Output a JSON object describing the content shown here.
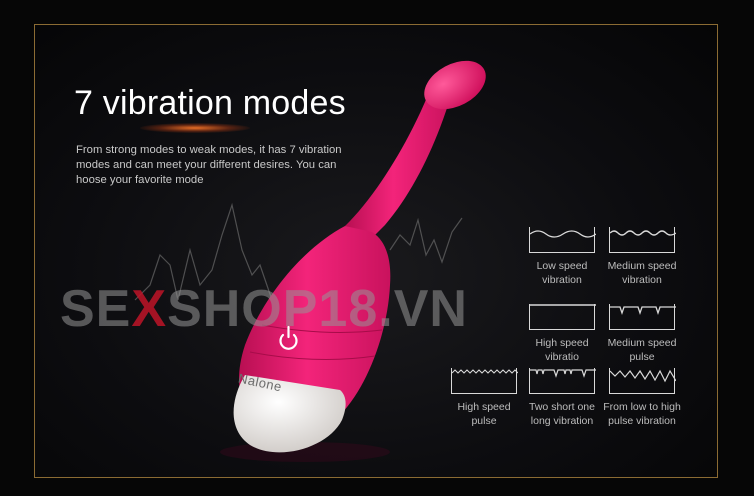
{
  "heading": "7 vibration modes",
  "description": "From strong modes to weak modes, it has 7 vibration\nmodes and can meet your different desires. You can\nhoose your favorite mode",
  "brand_on_device": "Nalone",
  "watermark": {
    "part1": "SE",
    "part2": "X",
    "part3": "SHOP18.VN"
  },
  "colors": {
    "device_pink": "#f0186f",
    "device_tip": "#f4f1ee",
    "frame_gold": "#8b6b33",
    "watermark_red": "#be1428"
  },
  "icons": {
    "power": "power-icon"
  },
  "modes": [
    {
      "label": "Low speed\nvibration",
      "pattern": "low-wave"
    },
    {
      "label": "Medium speed\nvibration",
      "pattern": "medium-wave"
    },
    {
      "label": "High speed\nvibratio",
      "pattern": "flat"
    },
    {
      "label": "Medium speed\npulse",
      "pattern": "pulse-medium"
    },
    {
      "label": "High speed\npulse",
      "pattern": "dense-pulse"
    },
    {
      "label": "Two short one\nlong vibration",
      "pattern": "two-short-one-long"
    },
    {
      "label": "From low to high\npulse vibration",
      "pattern": "rising-zigzag"
    }
  ]
}
